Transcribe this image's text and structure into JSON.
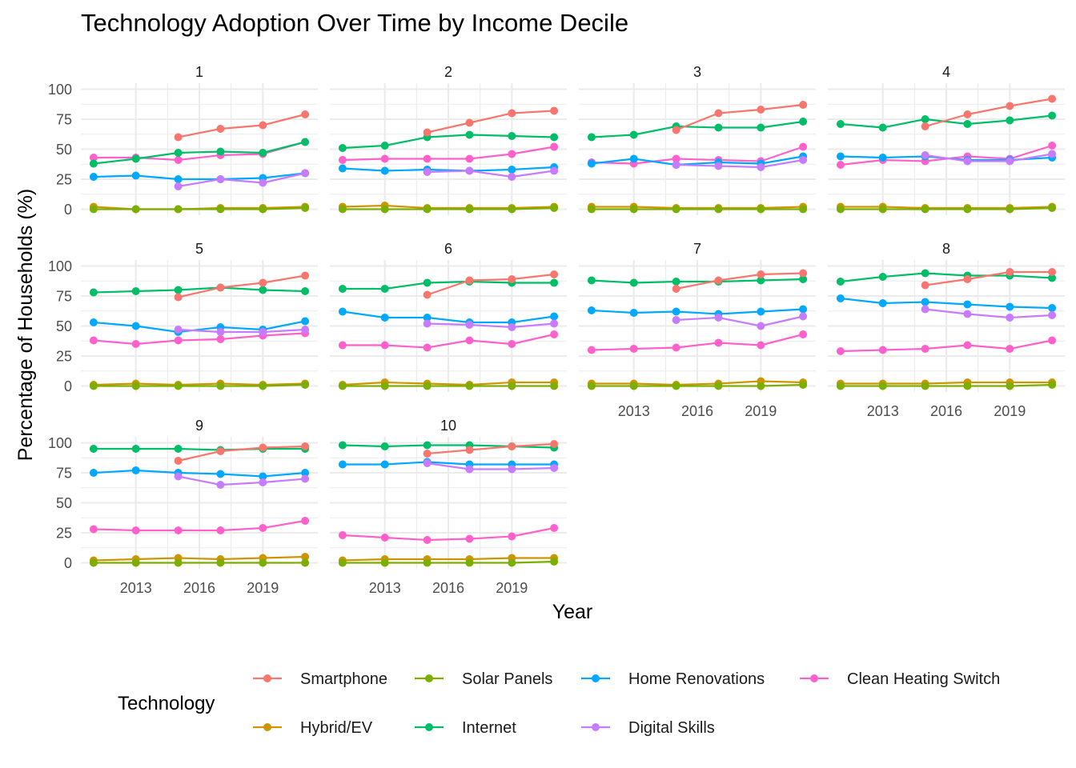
{
  "chart_data": {
    "type": "line",
    "title": "Technology Adoption Over Time by Income Decile",
    "xlabel": "Year",
    "ylabel": "Percentage of Households (%)",
    "facet_by": "Income Decile",
    "x": [
      2011,
      2013,
      2015,
      2017,
      2019,
      2021
    ],
    "x_ticks": [
      2013,
      2016,
      2019
    ],
    "y_ticks": [
      0,
      25,
      50,
      75,
      100
    ],
    "ylim": [
      0,
      100
    ],
    "grid": true,
    "legend": {
      "title": "Technology",
      "position": "bottom",
      "entries": [
        "Smartphone",
        "Solar Panels",
        "Home Renovations",
        "Clean Heating Switch",
        "Hybrid/EV",
        "Internet",
        "Digital Skills"
      ]
    },
    "colors": {
      "Smartphone": "#F8766D",
      "Solar Panels": "#7CAE00",
      "Home Renovations": "#00A9FF",
      "Clean Heating Switch": "#FF61CC",
      "Hybrid/EV": "#CD9600",
      "Internet": "#00BE67",
      "Digital Skills": "#C77CFF"
    },
    "series_order": [
      "Hybrid/EV",
      "Solar Panels",
      "Clean Heating Switch",
      "Home Renovations",
      "Digital Skills",
      "Internet",
      "Smartphone"
    ],
    "panels": [
      {
        "label": "1",
        "series": {
          "Smartphone": [
            null,
            null,
            60,
            67,
            70,
            79
          ],
          "Solar Panels": [
            0,
            0,
            0,
            0,
            0,
            1
          ],
          "Home Renovations": [
            27,
            28,
            25,
            25,
            26,
            30
          ],
          "Clean Heating Switch": [
            43,
            43,
            41,
            45,
            46,
            56
          ],
          "Hybrid/EV": [
            2,
            0,
            0,
            1,
            1,
            2
          ],
          "Internet": [
            38,
            42,
            47,
            48,
            47,
            56
          ],
          "Digital Skills": [
            null,
            null,
            19,
            25,
            22,
            30
          ]
        }
      },
      {
        "label": "2",
        "series": {
          "Smartphone": [
            null,
            null,
            64,
            72,
            80,
            82
          ],
          "Solar Panels": [
            0,
            0,
            0,
            0,
            0,
            1
          ],
          "Home Renovations": [
            34,
            32,
            33,
            32,
            33,
            35
          ],
          "Clean Heating Switch": [
            41,
            42,
            42,
            42,
            46,
            52
          ],
          "Hybrid/EV": [
            2,
            3,
            1,
            1,
            1,
            2
          ],
          "Internet": [
            51,
            53,
            60,
            62,
            61,
            60
          ],
          "Digital Skills": [
            null,
            null,
            31,
            32,
            27,
            32
          ]
        }
      },
      {
        "label": "3",
        "series": {
          "Smartphone": [
            null,
            null,
            66,
            80,
            83,
            87
          ],
          "Solar Panels": [
            0,
            0,
            0,
            0,
            0,
            0
          ],
          "Home Renovations": [
            38,
            42,
            37,
            39,
            38,
            44
          ],
          "Clean Heating Switch": [
            39,
            38,
            42,
            41,
            40,
            52
          ],
          "Hybrid/EV": [
            2,
            2,
            1,
            1,
            1,
            2
          ],
          "Internet": [
            60,
            62,
            69,
            68,
            68,
            73
          ],
          "Digital Skills": [
            null,
            null,
            37,
            36,
            35,
            41
          ]
        }
      },
      {
        "label": "4",
        "series": {
          "Smartphone": [
            null,
            null,
            69,
            79,
            86,
            92
          ],
          "Solar Panels": [
            0,
            0,
            0,
            0,
            0,
            1
          ],
          "Home Renovations": [
            44,
            43,
            44,
            41,
            41,
            43
          ],
          "Clean Heating Switch": [
            37,
            41,
            40,
            44,
            42,
            53
          ],
          "Hybrid/EV": [
            2,
            2,
            1,
            1,
            1,
            2
          ],
          "Internet": [
            71,
            68,
            75,
            71,
            74,
            78
          ],
          "Digital Skills": [
            null,
            null,
            45,
            40,
            40,
            46
          ]
        }
      },
      {
        "label": "5",
        "series": {
          "Smartphone": [
            null,
            null,
            74,
            82,
            86,
            92
          ],
          "Solar Panels": [
            0,
            0,
            0,
            0,
            0,
            1
          ],
          "Home Renovations": [
            53,
            50,
            45,
            49,
            47,
            54
          ],
          "Clean Heating Switch": [
            38,
            35,
            38,
            39,
            42,
            44
          ],
          "Hybrid/EV": [
            1,
            2,
            1,
            2,
            1,
            2
          ],
          "Internet": [
            78,
            79,
            80,
            82,
            80,
            79
          ],
          "Digital Skills": [
            null,
            null,
            47,
            45,
            45,
            47
          ]
        }
      },
      {
        "label": "6",
        "series": {
          "Smartphone": [
            null,
            null,
            76,
            88,
            89,
            93
          ],
          "Solar Panels": [
            0,
            0,
            0,
            0,
            0,
            0
          ],
          "Home Renovations": [
            62,
            57,
            57,
            53,
            53,
            58
          ],
          "Clean Heating Switch": [
            34,
            34,
            32,
            38,
            35,
            43
          ],
          "Hybrid/EV": [
            1,
            3,
            2,
            1,
            3,
            3
          ],
          "Internet": [
            81,
            81,
            86,
            87,
            86,
            86
          ],
          "Digital Skills": [
            null,
            null,
            52,
            51,
            49,
            52
          ]
        }
      },
      {
        "label": "7",
        "series": {
          "Smartphone": [
            null,
            null,
            81,
            88,
            93,
            94
          ],
          "Solar Panels": [
            0,
            0,
            0,
            0,
            0,
            1
          ],
          "Home Renovations": [
            63,
            61,
            62,
            60,
            62,
            64
          ],
          "Clean Heating Switch": [
            30,
            31,
            32,
            36,
            34,
            43
          ],
          "Hybrid/EV": [
            2,
            2,
            1,
            2,
            4,
            3
          ],
          "Internet": [
            88,
            86,
            87,
            87,
            88,
            89
          ],
          "Digital Skills": [
            null,
            null,
            55,
            57,
            50,
            58
          ]
        }
      },
      {
        "label": "8",
        "series": {
          "Smartphone": [
            null,
            null,
            84,
            89,
            95,
            95
          ],
          "Solar Panels": [
            0,
            0,
            0,
            0,
            0,
            1
          ],
          "Home Renovations": [
            73,
            69,
            70,
            68,
            66,
            65
          ],
          "Clean Heating Switch": [
            29,
            30,
            31,
            34,
            31,
            38
          ],
          "Hybrid/EV": [
            2,
            2,
            2,
            3,
            3,
            3
          ],
          "Internet": [
            87,
            91,
            94,
            92,
            92,
            90
          ],
          "Digital Skills": [
            null,
            null,
            64,
            60,
            57,
            59
          ]
        }
      },
      {
        "label": "9",
        "series": {
          "Smartphone": [
            null,
            null,
            85,
            93,
            96,
            97
          ],
          "Solar Panels": [
            0,
            0,
            0,
            0,
            0,
            0
          ],
          "Home Renovations": [
            75,
            77,
            75,
            74,
            72,
            75
          ],
          "Clean Heating Switch": [
            28,
            27,
            27,
            27,
            29,
            35
          ],
          "Hybrid/EV": [
            2,
            3,
            4,
            3,
            4,
            5
          ],
          "Internet": [
            95,
            95,
            95,
            94,
            95,
            95
          ],
          "Digital Skills": [
            null,
            null,
            72,
            65,
            67,
            70
          ]
        }
      },
      {
        "label": "10",
        "series": {
          "Smartphone": [
            null,
            null,
            91,
            94,
            97,
            99
          ],
          "Solar Panels": [
            0,
            0,
            0,
            0,
            0,
            1
          ],
          "Home Renovations": [
            82,
            82,
            84,
            82,
            82,
            82
          ],
          "Clean Heating Switch": [
            23,
            21,
            19,
            20,
            22,
            29
          ],
          "Hybrid/EV": [
            2,
            3,
            3,
            3,
            4,
            4
          ],
          "Internet": [
            98,
            97,
            98,
            98,
            97,
            96
          ],
          "Digital Skills": [
            null,
            null,
            83,
            78,
            78,
            79
          ]
        }
      }
    ]
  }
}
